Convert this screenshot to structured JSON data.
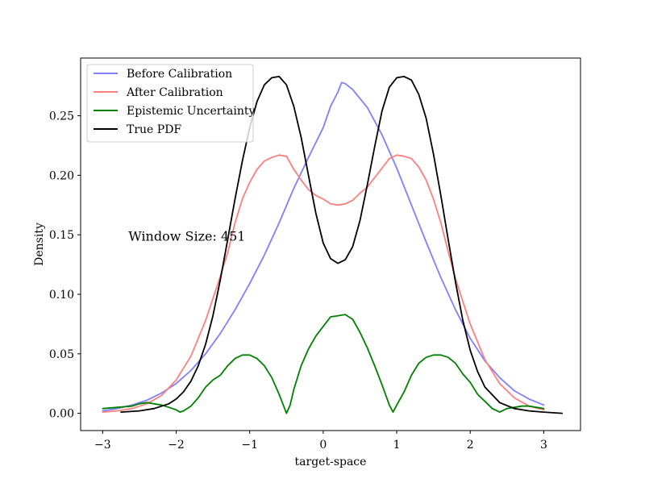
{
  "chart_data": {
    "type": "line",
    "xlabel": "target-space",
    "ylabel": "Density",
    "xlim": [
      -3.3,
      3.5
    ],
    "ylim": [
      -0.0145,
      0.2985
    ],
    "xticks": [
      {
        "value": -3,
        "label": "−3"
      },
      {
        "value": -2,
        "label": "−2"
      },
      {
        "value": -1,
        "label": "−1"
      },
      {
        "value": 0,
        "label": "0"
      },
      {
        "value": 1,
        "label": "1"
      },
      {
        "value": 2,
        "label": "2"
      },
      {
        "value": 3,
        "label": "3"
      }
    ],
    "yticks": [
      {
        "value": 0.0,
        "label": "0.00"
      },
      {
        "value": 0.05,
        "label": "0.05"
      },
      {
        "value": 0.1,
        "label": "0.10"
      },
      {
        "value": 0.15,
        "label": "0.15"
      },
      {
        "value": 0.2,
        "label": "0.20"
      },
      {
        "value": 0.25,
        "label": "0.25"
      }
    ],
    "grid": false,
    "legend_position": "top-left",
    "annotation": {
      "text": "Window Size: 451",
      "x": -2.65,
      "y": 0.145
    },
    "series": [
      {
        "name": "Before Calibration",
        "color": "#7f7fff",
        "points": [
          [
            -3.0,
            0.002
          ],
          [
            -2.8,
            0.004
          ],
          [
            -2.6,
            0.007
          ],
          [
            -2.4,
            0.011
          ],
          [
            -2.2,
            0.017
          ],
          [
            -2.0,
            0.025
          ],
          [
            -1.8,
            0.036
          ],
          [
            -1.6,
            0.05
          ],
          [
            -1.4,
            0.067
          ],
          [
            -1.2,
            0.087
          ],
          [
            -1.0,
            0.109
          ],
          [
            -0.8,
            0.133
          ],
          [
            -0.6,
            0.16
          ],
          [
            -0.4,
            0.189
          ],
          [
            -0.2,
            0.215
          ],
          [
            0.0,
            0.24
          ],
          [
            0.1,
            0.258
          ],
          [
            0.2,
            0.27
          ],
          [
            0.25,
            0.278
          ],
          [
            0.3,
            0.277
          ],
          [
            0.4,
            0.272
          ],
          [
            0.6,
            0.257
          ],
          [
            0.8,
            0.234
          ],
          [
            1.0,
            0.206
          ],
          [
            1.2,
            0.175
          ],
          [
            1.4,
            0.144
          ],
          [
            1.6,
            0.114
          ],
          [
            1.8,
            0.087
          ],
          [
            2.0,
            0.063
          ],
          [
            2.2,
            0.044
          ],
          [
            2.4,
            0.03
          ],
          [
            2.6,
            0.019
          ],
          [
            2.8,
            0.012
          ],
          [
            3.0,
            0.007
          ]
        ]
      },
      {
        "name": "After Calibration",
        "color": "#ff7f7f",
        "points": [
          [
            -3.0,
            0.001
          ],
          [
            -2.8,
            0.002
          ],
          [
            -2.6,
            0.004
          ],
          [
            -2.4,
            0.008
          ],
          [
            -2.2,
            0.015
          ],
          [
            -2.0,
            0.028
          ],
          [
            -1.8,
            0.048
          ],
          [
            -1.6,
            0.078
          ],
          [
            -1.4,
            0.115
          ],
          [
            -1.3,
            0.135
          ],
          [
            -1.2,
            0.16
          ],
          [
            -1.1,
            0.18
          ],
          [
            -1.0,
            0.194
          ],
          [
            -0.9,
            0.205
          ],
          [
            -0.8,
            0.212
          ],
          [
            -0.7,
            0.215
          ],
          [
            -0.6,
            0.217
          ],
          [
            -0.5,
            0.216
          ],
          [
            -0.4,
            0.205
          ],
          [
            -0.3,
            0.196
          ],
          [
            -0.2,
            0.188
          ],
          [
            -0.1,
            0.183
          ],
          [
            0.0,
            0.18
          ],
          [
            0.1,
            0.176
          ],
          [
            0.2,
            0.175
          ],
          [
            0.3,
            0.176
          ],
          [
            0.4,
            0.179
          ],
          [
            0.5,
            0.185
          ],
          [
            0.6,
            0.19
          ],
          [
            0.7,
            0.198
          ],
          [
            0.8,
            0.206
          ],
          [
            0.9,
            0.214
          ],
          [
            1.0,
            0.217
          ],
          [
            1.1,
            0.216
          ],
          [
            1.2,
            0.214
          ],
          [
            1.3,
            0.207
          ],
          [
            1.4,
            0.196
          ],
          [
            1.5,
            0.18
          ],
          [
            1.6,
            0.16
          ],
          [
            1.7,
            0.136
          ],
          [
            1.8,
            0.113
          ],
          [
            2.0,
            0.075
          ],
          [
            2.2,
            0.045
          ],
          [
            2.4,
            0.025
          ],
          [
            2.6,
            0.013
          ],
          [
            2.8,
            0.006
          ],
          [
            3.0,
            0.003
          ]
        ]
      },
      {
        "name": "Epistemic Uncertainty",
        "color": "#008000",
        "points": [
          [
            -3.0,
            0.004
          ],
          [
            -2.8,
            0.005
          ],
          [
            -2.6,
            0.006
          ],
          [
            -2.5,
            0.008
          ],
          [
            -2.4,
            0.009
          ],
          [
            -2.3,
            0.008
          ],
          [
            -2.2,
            0.007
          ],
          [
            -2.1,
            0.005
          ],
          [
            -2.0,
            0.003
          ],
          [
            -1.95,
            0.001
          ],
          [
            -1.9,
            0.002
          ],
          [
            -1.8,
            0.006
          ],
          [
            -1.7,
            0.013
          ],
          [
            -1.6,
            0.022
          ],
          [
            -1.5,
            0.028
          ],
          [
            -1.4,
            0.032
          ],
          [
            -1.3,
            0.04
          ],
          [
            -1.2,
            0.046
          ],
          [
            -1.1,
            0.049
          ],
          [
            -1.0,
            0.049
          ],
          [
            -0.9,
            0.046
          ],
          [
            -0.8,
            0.04
          ],
          [
            -0.7,
            0.03
          ],
          [
            -0.6,
            0.016
          ],
          [
            -0.5,
            0.0
          ],
          [
            -0.45,
            0.007
          ],
          [
            -0.4,
            0.02
          ],
          [
            -0.3,
            0.04
          ],
          [
            -0.2,
            0.054
          ],
          [
            -0.1,
            0.065
          ],
          [
            0.0,
            0.073
          ],
          [
            0.1,
            0.081
          ],
          [
            0.2,
            0.082
          ],
          [
            0.3,
            0.083
          ],
          [
            0.4,
            0.079
          ],
          [
            0.5,
            0.068
          ],
          [
            0.6,
            0.055
          ],
          [
            0.7,
            0.04
          ],
          [
            0.8,
            0.024
          ],
          [
            0.9,
            0.007
          ],
          [
            0.95,
            0.001
          ],
          [
            1.0,
            0.007
          ],
          [
            1.1,
            0.018
          ],
          [
            1.2,
            0.032
          ],
          [
            1.3,
            0.042
          ],
          [
            1.4,
            0.047
          ],
          [
            1.5,
            0.049
          ],
          [
            1.6,
            0.049
          ],
          [
            1.7,
            0.047
          ],
          [
            1.8,
            0.042
          ],
          [
            1.9,
            0.033
          ],
          [
            2.0,
            0.026
          ],
          [
            2.1,
            0.016
          ],
          [
            2.2,
            0.01
          ],
          [
            2.3,
            0.004
          ],
          [
            2.4,
            0.001
          ],
          [
            2.5,
            0.004
          ],
          [
            2.6,
            0.005
          ],
          [
            2.7,
            0.006
          ],
          [
            2.8,
            0.006
          ],
          [
            2.9,
            0.005
          ],
          [
            3.0,
            0.004
          ]
        ]
      },
      {
        "name": "True PDF",
        "color": "#000000",
        "points": [
          [
            -2.75,
            0.001
          ],
          [
            -2.5,
            0.002
          ],
          [
            -2.3,
            0.004
          ],
          [
            -2.1,
            0.008
          ],
          [
            -2.0,
            0.012
          ],
          [
            -1.9,
            0.018
          ],
          [
            -1.8,
            0.027
          ],
          [
            -1.7,
            0.04
          ],
          [
            -1.6,
            0.058
          ],
          [
            -1.5,
            0.082
          ],
          [
            -1.4,
            0.112
          ],
          [
            -1.3,
            0.146
          ],
          [
            -1.2,
            0.18
          ],
          [
            -1.1,
            0.212
          ],
          [
            -1.0,
            0.24
          ],
          [
            -0.9,
            0.262
          ],
          [
            -0.8,
            0.276
          ],
          [
            -0.7,
            0.282
          ],
          [
            -0.6,
            0.283
          ],
          [
            -0.5,
            0.276
          ],
          [
            -0.4,
            0.258
          ],
          [
            -0.3,
            0.232
          ],
          [
            -0.2,
            0.2
          ],
          [
            -0.1,
            0.168
          ],
          [
            0.0,
            0.143
          ],
          [
            0.1,
            0.13
          ],
          [
            0.2,
            0.126
          ],
          [
            0.3,
            0.129
          ],
          [
            0.4,
            0.14
          ],
          [
            0.5,
            0.162
          ],
          [
            0.6,
            0.192
          ],
          [
            0.7,
            0.224
          ],
          [
            0.8,
            0.254
          ],
          [
            0.9,
            0.274
          ],
          [
            1.0,
            0.282
          ],
          [
            1.1,
            0.283
          ],
          [
            1.2,
            0.28
          ],
          [
            1.3,
            0.268
          ],
          [
            1.4,
            0.248
          ],
          [
            1.5,
            0.218
          ],
          [
            1.6,
            0.183
          ],
          [
            1.7,
            0.146
          ],
          [
            1.8,
            0.11
          ],
          [
            1.9,
            0.078
          ],
          [
            2.0,
            0.053
          ],
          [
            2.1,
            0.035
          ],
          [
            2.2,
            0.022
          ],
          [
            2.4,
            0.009
          ],
          [
            2.6,
            0.004
          ],
          [
            2.8,
            0.002
          ],
          [
            3.0,
            0.001
          ],
          [
            3.25,
            0.0
          ]
        ]
      }
    ]
  }
}
